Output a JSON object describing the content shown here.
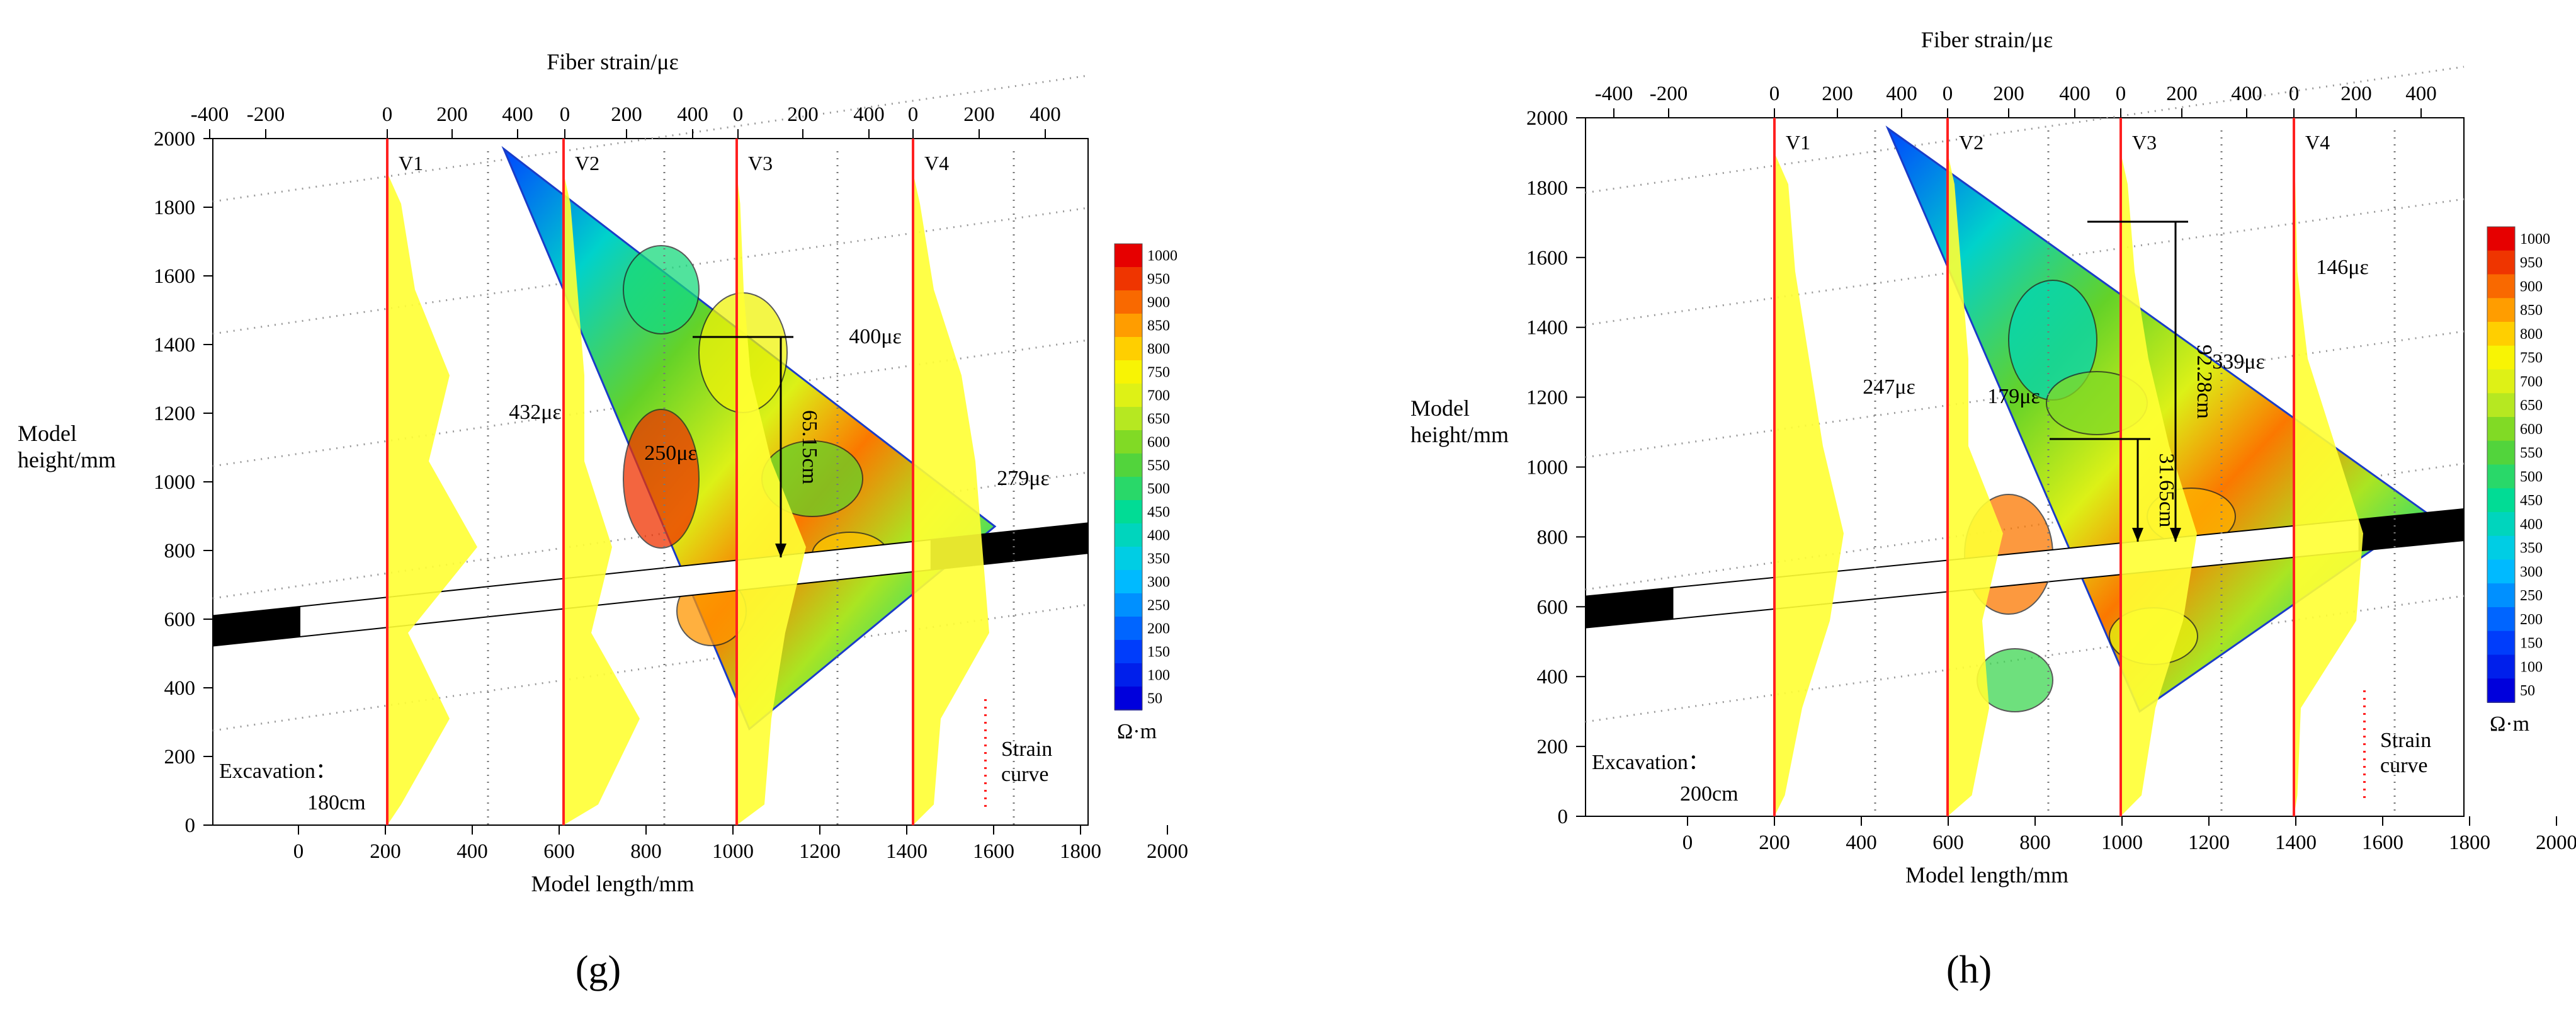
{
  "chart_data": [
    {
      "panel_label": "(g)",
      "type": "contour",
      "x_top_label": "Fiber strain/με",
      "x_bottom_label": "Model length/mm",
      "y_label_lines": [
        "Model",
        "height/mm"
      ],
      "x_ticks": [
        "0",
        "200",
        "400",
        "600",
        "800",
        "1000",
        "1200",
        "1400",
        "1600",
        "1800",
        "2000"
      ],
      "y_ticks": [
        "0",
        "200",
        "400",
        "600",
        "800",
        "1000",
        "1200",
        "1400",
        "1600",
        "1800",
        "2000"
      ],
      "strain_ticks": [
        "-400",
        "-200",
        "0",
        "200",
        "400",
        "0",
        "200",
        "400",
        "0",
        "200",
        "400",
        "0",
        "200",
        "400"
      ],
      "lines": [
        "V1",
        "V2",
        "V3",
        "V4"
      ],
      "excavation_label": "Excavation：",
      "excavation_value": "180cm",
      "strain_curve_label": [
        "Strain",
        "curve"
      ],
      "strain_annotations": [
        "432με",
        "250με",
        "400με",
        "279με"
      ],
      "dimension_annotations": [
        "65.15cm"
      ],
      "colorbar_ticks": [
        "1000",
        "950",
        "900",
        "850",
        "800",
        "750",
        "700",
        "650",
        "600",
        "550",
        "500",
        "450",
        "400",
        "350",
        "300",
        "250",
        "200",
        "150",
        "100",
        "50"
      ],
      "colorbar_unit": "Ω·m"
    },
    {
      "panel_label": "(h)",
      "type": "contour",
      "x_top_label": "Fiber strain/με",
      "x_bottom_label": "Model length/mm",
      "y_label_lines": [
        "Model",
        "height/mm"
      ],
      "x_ticks": [
        "0",
        "200",
        "400",
        "600",
        "800",
        "1000",
        "1200",
        "1400",
        "1600",
        "1800",
        "2000"
      ],
      "y_ticks": [
        "0",
        "200",
        "400",
        "600",
        "800",
        "1000",
        "1200",
        "1400",
        "1600",
        "1800",
        "2000"
      ],
      "strain_ticks": [
        "-400",
        "-200",
        "0",
        "200",
        "400",
        "0",
        "200",
        "400",
        "0",
        "200",
        "400",
        "0",
        "200",
        "400"
      ],
      "lines": [
        "V1",
        "V2",
        "V3",
        "V4"
      ],
      "excavation_label": "Excavation：",
      "excavation_value": "200cm",
      "strain_curve_label": [
        "Strain",
        "curve"
      ],
      "strain_annotations": [
        "247με",
        "179με",
        "339με",
        "146με"
      ],
      "dimension_annotations": [
        "92.28cm",
        "31.65cm"
      ],
      "colorbar_ticks": [
        "1000",
        "950",
        "900",
        "850",
        "800",
        "750",
        "700",
        "650",
        "600",
        "550",
        "500",
        "450",
        "400",
        "350",
        "300",
        "250",
        "200",
        "150",
        "100",
        "50"
      ],
      "colorbar_unit": "Ω·m"
    }
  ]
}
